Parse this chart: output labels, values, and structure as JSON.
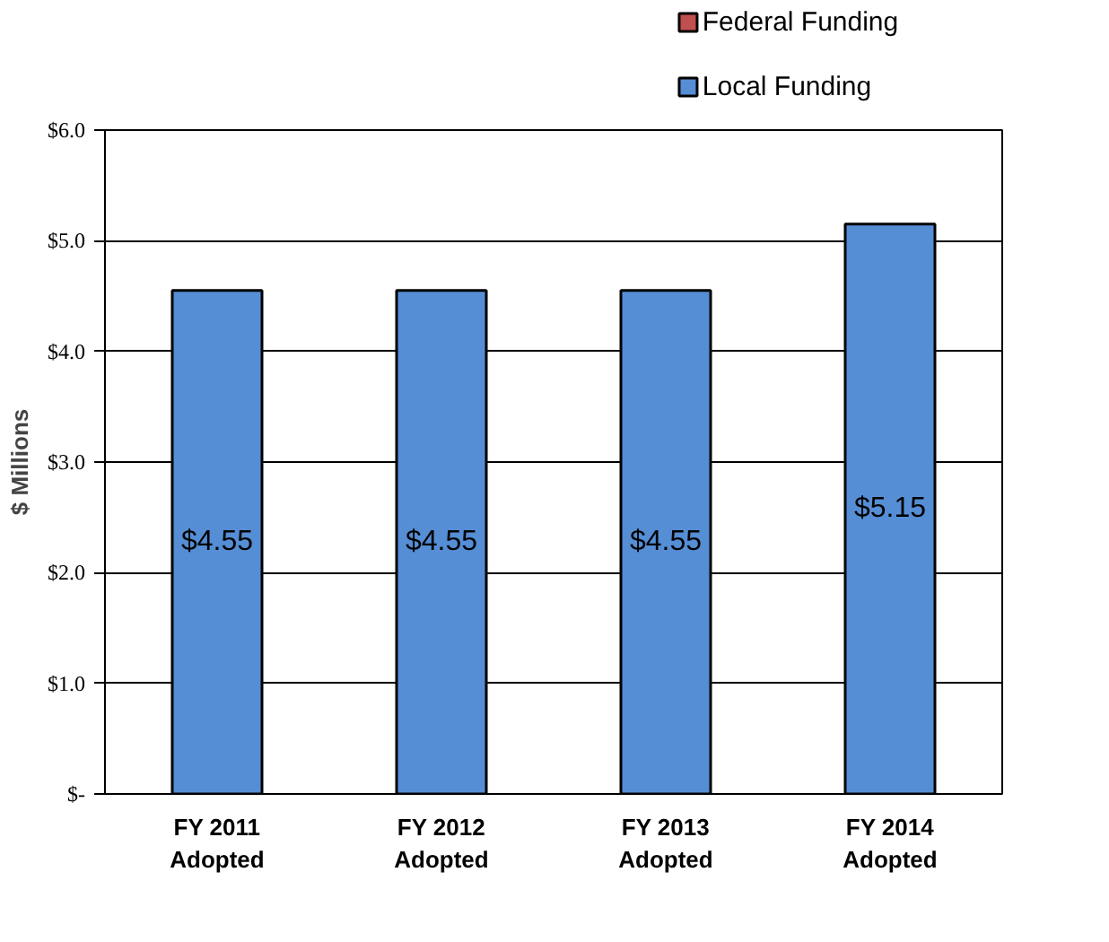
{
  "chart_data": {
    "type": "bar",
    "ylabel": "$ Millions",
    "categories": [
      "FY 2011\nAdopted",
      "FY 2012\nAdopted",
      "FY 2013\nAdopted",
      "FY 2014\nAdopted"
    ],
    "series": [
      {
        "name": "Local Funding",
        "color": "#558ed5",
        "values": [
          4.55,
          4.55,
          4.55,
          5.15
        ],
        "value_labels": [
          "$4.55",
          "$4.55",
          "$4.55",
          "$5.15"
        ]
      },
      {
        "name": "Federal Funding",
        "color": "#c0504d",
        "values": [
          null,
          null,
          null,
          null
        ]
      }
    ],
    "ylim": [
      0,
      6
    ],
    "yticks": [
      {
        "value": 0,
        "label": "$-"
      },
      {
        "value": 1,
        "label": "$1.0"
      },
      {
        "value": 2,
        "label": "$2.0"
      },
      {
        "value": 3,
        "label": "$3.0"
      },
      {
        "value": 4,
        "label": "$4.0"
      },
      {
        "value": 5,
        "label": "$5.0"
      },
      {
        "value": 6,
        "label": "$6.0"
      }
    ],
    "grid": "y",
    "legend": "top right"
  }
}
